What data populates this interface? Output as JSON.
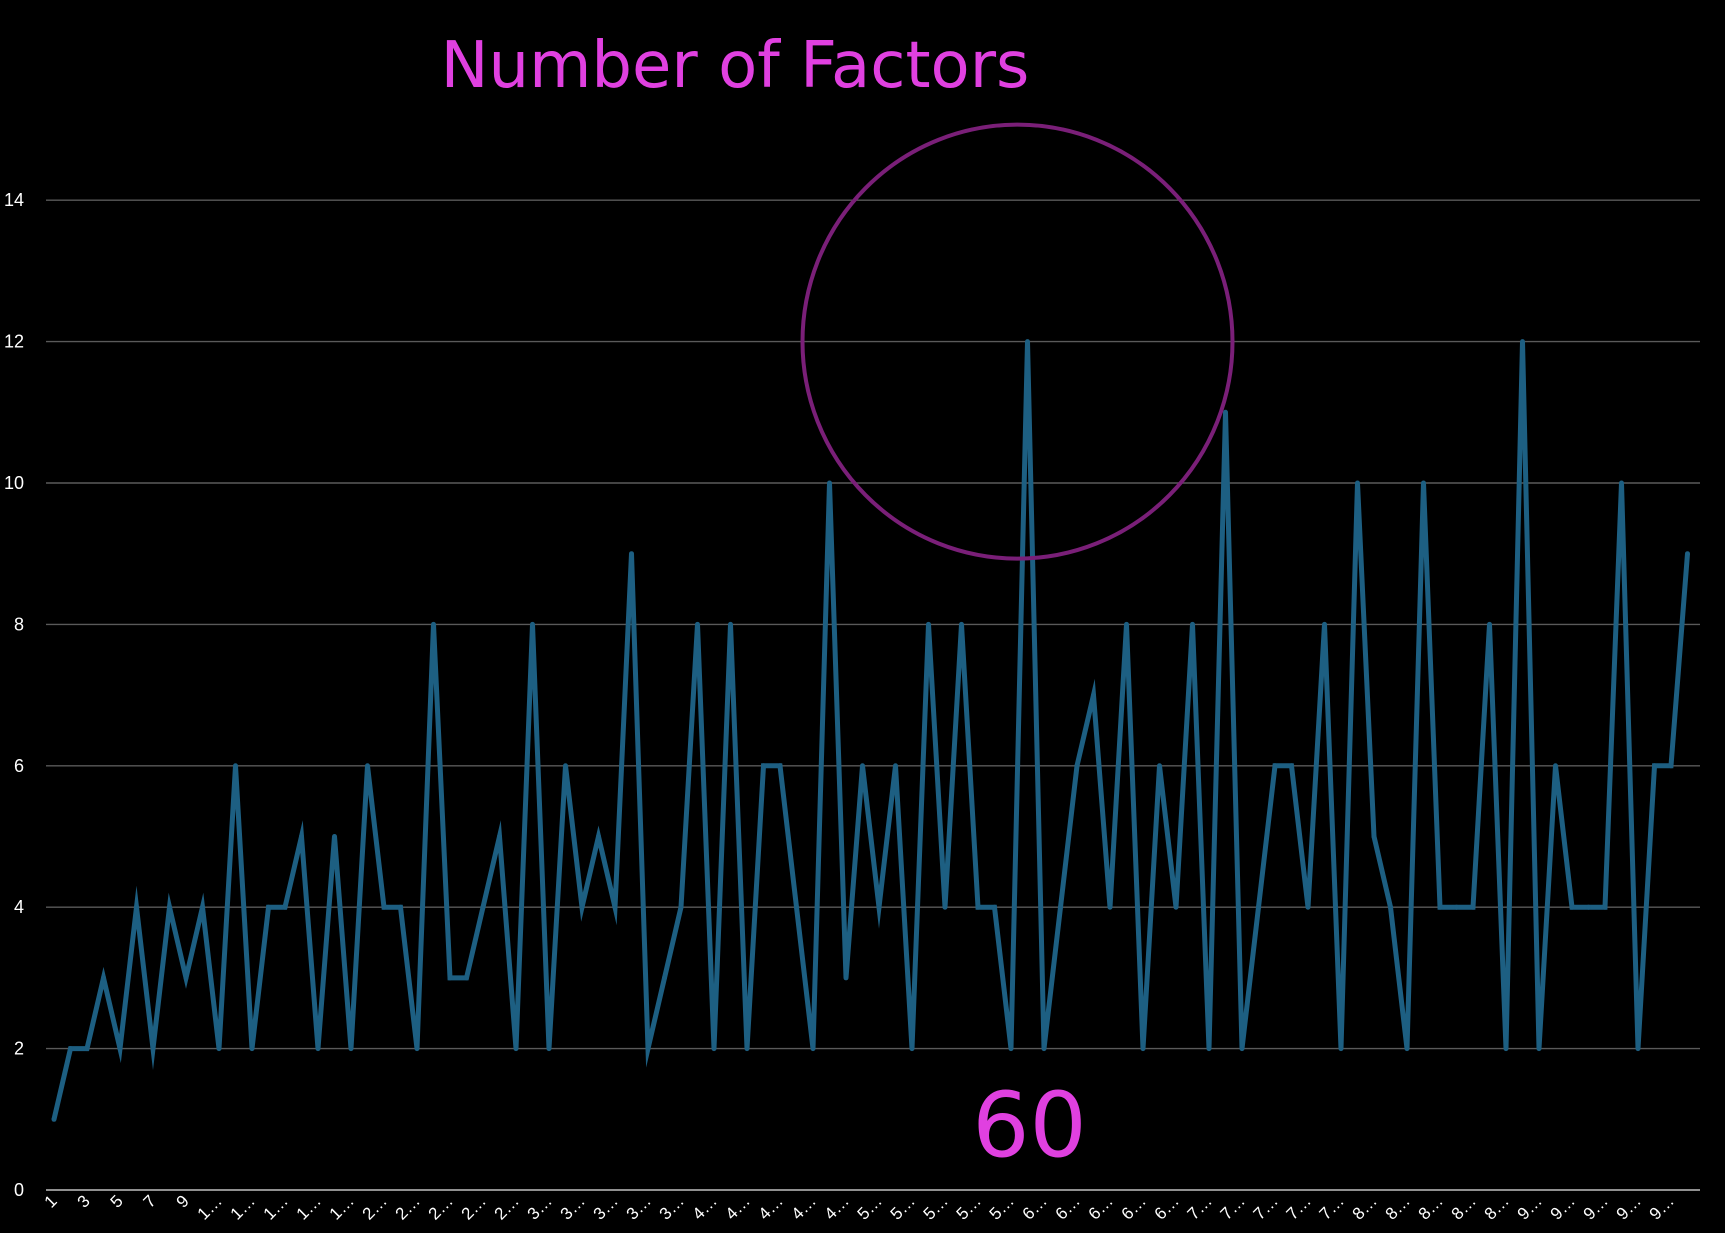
{
  "chart_data": {
    "type": "line",
    "title": "Number of Factors",
    "xlabel": "",
    "ylabel": "",
    "ylim": [
      0,
      14
    ],
    "yticks": [
      0,
      2,
      4,
      6,
      8,
      10,
      12,
      14
    ],
    "grid": true,
    "legend": "none",
    "x": [
      1,
      2,
      3,
      4,
      5,
      6,
      7,
      8,
      9,
      10,
      11,
      12,
      13,
      14,
      15,
      16,
      17,
      18,
      19,
      20,
      21,
      22,
      23,
      24,
      25,
      26,
      27,
      28,
      29,
      30,
      31,
      32,
      33,
      34,
      35,
      36,
      37,
      38,
      39,
      40,
      41,
      42,
      43,
      44,
      45,
      46,
      47,
      48,
      49,
      50,
      51,
      52,
      53,
      54,
      55,
      56,
      57,
      58,
      59,
      60,
      61,
      62,
      63,
      64,
      65,
      66,
      67,
      68,
      69,
      70,
      71,
      72,
      73,
      74,
      75,
      76,
      77,
      78,
      79,
      80,
      81,
      82,
      83,
      84,
      85,
      86,
      87,
      88,
      89,
      90,
      91,
      92,
      93,
      94,
      95,
      96,
      97,
      98,
      99,
      100
    ],
    "x_tick_labels": [
      "1",
      "3",
      "5",
      "7",
      "9",
      "1…",
      "1…",
      "1…",
      "1…",
      "1…",
      "2…",
      "2…",
      "2…",
      "2…",
      "2…",
      "3…",
      "3…",
      "3…",
      "3…",
      "3…",
      "4…",
      "4…",
      "4…",
      "4…",
      "4…",
      "5…",
      "5…",
      "5…",
      "5…",
      "5…",
      "6…",
      "6…",
      "6…",
      "6…",
      "6…",
      "7…",
      "7…",
      "7…",
      "7…",
      "7…",
      "8…",
      "8…",
      "8…",
      "8…",
      "8…",
      "9…",
      "9…",
      "9…",
      "9…",
      "9…"
    ],
    "series": [
      {
        "name": "",
        "color": "#1d5f82",
        "values": [
          1,
          2,
          2,
          3,
          2,
          4,
          2,
          4,
          3,
          4,
          2,
          6,
          2,
          4,
          4,
          5,
          2,
          5,
          2,
          6,
          4,
          4,
          2,
          8,
          3,
          3,
          4,
          5,
          2,
          8,
          2,
          6,
          4,
          5,
          4,
          9,
          2,
          3,
          4,
          8,
          2,
          8,
          2,
          6,
          6,
          4,
          2,
          10,
          3,
          6,
          4,
          6,
          2,
          8,
          4,
          8,
          4,
          4,
          2,
          12,
          2,
          4,
          6,
          7,
          4,
          8,
          2,
          6,
          4,
          8,
          2,
          11,
          2,
          4,
          6,
          6,
          4,
          8,
          2,
          10,
          5,
          4,
          2,
          10,
          4,
          4,
          4,
          8,
          2,
          12,
          2,
          6,
          4,
          4,
          4,
          10,
          2,
          6,
          6,
          9
        ]
      }
    ],
    "annotations": [
      {
        "type": "circle",
        "target_x": 60,
        "target_y": 12,
        "color": "#7a1f78"
      },
      {
        "type": "text",
        "text": "60",
        "target_x": 60,
        "color": "#e040e0"
      }
    ]
  }
}
